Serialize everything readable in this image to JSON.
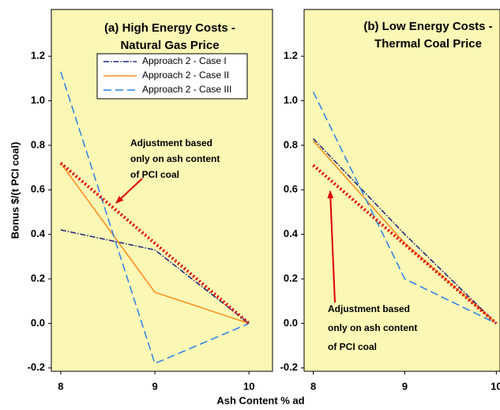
{
  "chart_data": [
    {
      "type": "line",
      "title": [
        "(a) High Energy Costs -",
        "Natural Gas Price"
      ],
      "ylabel": "Bonus $/(t PCI coal)",
      "xlabel": "Ash Content % ad",
      "x": [
        8,
        9,
        10
      ],
      "xlim": [
        7.9,
        10.25
      ],
      "xticks": [
        8,
        9,
        10
      ],
      "ylim": [
        -0.215,
        1.41
      ],
      "yticks": [
        -0.2,
        {
          "value": 0,
          "label": "0.0"
        },
        0.2,
        0.4,
        0.6,
        0.8,
        {
          "value": 1,
          "label": "1.0"
        },
        1.2
      ],
      "series": [
        {
          "name": "Approach 2 - Case I",
          "color": "#1a237e",
          "values": [
            0.42,
            0.33,
            0.0
          ]
        },
        {
          "name": "Approach 2 - Case II",
          "color": "#ff8c1a",
          "values": [
            0.72,
            0.14,
            0.0
          ]
        },
        {
          "name": "Approach 2 - Case III",
          "color": "#2a7fe6",
          "values": [
            1.13,
            -0.18,
            0.0
          ]
        }
      ],
      "adjustment": {
        "color": "#e00000",
        "x": [
          8,
          10
        ],
        "values": [
          0.72,
          0.0
        ]
      },
      "annotation": [
        "Adjustment based",
        "only on ash content",
        "of PCI coal"
      ],
      "background": "#fbf7b5",
      "legend": "top-right"
    },
    {
      "type": "line",
      "title": [
        "(b) Low Energy Costs -",
        "Thermal Coal Price"
      ],
      "x": [
        8,
        9,
        10
      ],
      "xlim": [
        7.9,
        10.04
      ],
      "xticks": [
        8,
        9,
        10
      ],
      "ylim": [
        -0.215,
        1.41
      ],
      "yticks": [
        -0.2,
        {
          "value": 0,
          "label": "0.0"
        },
        0.2,
        0.4,
        0.6,
        0.8,
        {
          "value": 1,
          "label": "1.0"
        },
        1.2
      ],
      "series": [
        {
          "color": "#1a237e",
          "values": [
            0.83,
            0.4,
            0.0
          ]
        },
        {
          "color": "#ff8c1a",
          "values": [
            0.82,
            0.36,
            0.0
          ]
        },
        {
          "color": "#2a7fe6",
          "values": [
            1.04,
            0.2,
            0.0
          ]
        }
      ],
      "adjustment": {
        "color": "#e00000",
        "x": [
          8,
          10
        ],
        "values": [
          0.71,
          0.0
        ]
      },
      "annotation": [
        "Adjustment based",
        "only on ash content",
        "of PCI coal"
      ],
      "background": "#fbf7b5"
    }
  ]
}
